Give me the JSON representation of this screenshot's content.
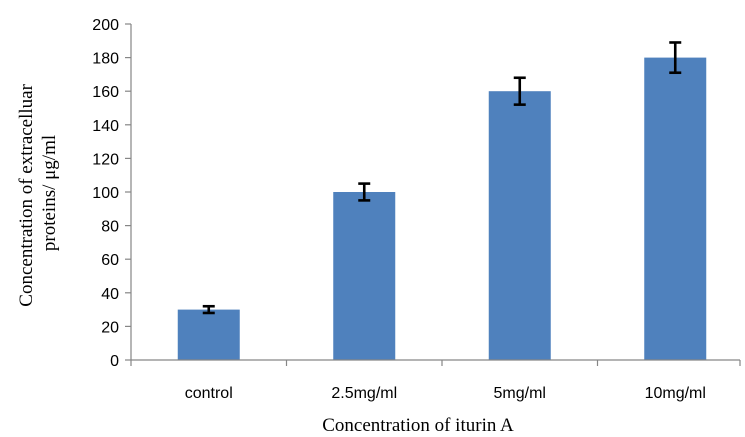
{
  "chart_data": {
    "type": "bar",
    "categories": [
      "control",
      "2.5mg/ml",
      "5mg/ml",
      "10mg/ml"
    ],
    "values": [
      30,
      100,
      160,
      180
    ],
    "errors": [
      2,
      5,
      8,
      9
    ],
    "xlabel": "Concentration of iturin A",
    "ylabel_lines": [
      "Concentration of extracelluar",
      "proteins/ μg/ml"
    ],
    "ylim": [
      0,
      200
    ],
    "y_ticks": [
      0,
      20,
      40,
      60,
      80,
      100,
      120,
      140,
      160,
      180,
      200
    ],
    "grid": false,
    "legend": "none",
    "bar_color": "#4f81bd"
  }
}
